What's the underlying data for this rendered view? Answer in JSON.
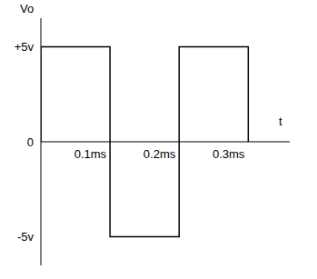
{
  "chart_data": {
    "type": "line",
    "y_label": "Vo",
    "x_label": "t",
    "x": [
      0,
      0,
      0.1,
      0.1,
      0.2,
      0.2,
      0.3,
      0.3
    ],
    "values": [
      0,
      5,
      5,
      -5,
      -5,
      5,
      5,
      0
    ],
    "color": "#000000",
    "xlim": [
      0,
      0.36
    ],
    "ylim": [
      -6.5,
      6.5
    ],
    "xticks": [
      {
        "value": 0.1,
        "label": "0.1ms"
      },
      {
        "value": 0.2,
        "label": "0.2ms"
      },
      {
        "value": 0.3,
        "label": "0.3ms"
      }
    ],
    "yticks": [
      {
        "value": 5,
        "label": "+5v"
      },
      0,
      {
        "value": -5,
        "label": "-5v"
      }
    ],
    "grid": false
  }
}
